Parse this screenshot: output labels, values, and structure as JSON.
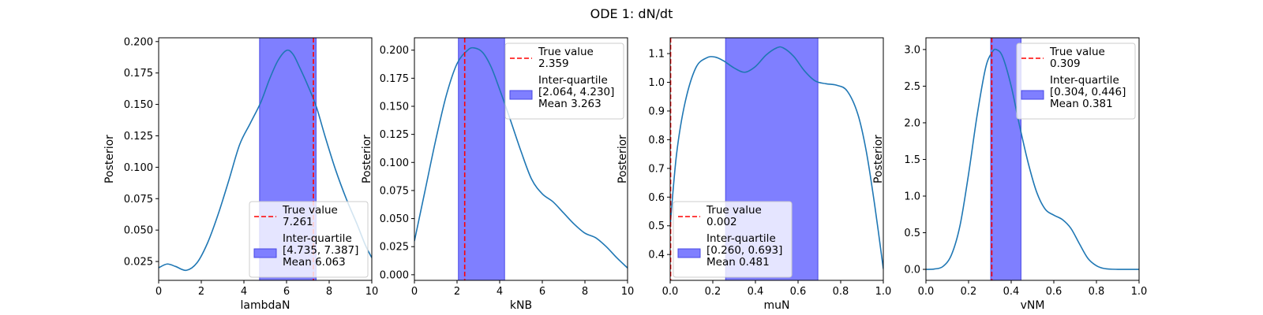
{
  "figure": {
    "title": "ODE 1: dN/dt"
  },
  "chart_data": [
    {
      "type": "line",
      "title": "",
      "xlabel": "lambdaN",
      "ylabel": "Posterior",
      "xlim": [
        0,
        10
      ],
      "ylim": [
        0.01,
        0.203
      ],
      "xticks": [
        0,
        2,
        4,
        6,
        8,
        10
      ],
      "yticks": [
        0.025,
        0.05,
        0.075,
        0.1,
        0.125,
        0.15,
        0.175,
        0.2
      ],
      "tick_decimals": 3,
      "grid": false,
      "legend_position": "lower-right",
      "curve": {
        "x": [
          0,
          0.4,
          0.8,
          1.3,
          1.8,
          2.3,
          2.8,
          3.3,
          3.8,
          4.3,
          4.8,
          5.2,
          5.6,
          6.0,
          6.3,
          6.6,
          7.0,
          7.4,
          7.8,
          8.3,
          8.8,
          9.3,
          9.7,
          10
        ],
        "y": [
          0.02,
          0.023,
          0.021,
          0.018,
          0.024,
          0.04,
          0.063,
          0.09,
          0.118,
          0.135,
          0.152,
          0.17,
          0.185,
          0.193,
          0.19,
          0.18,
          0.165,
          0.148,
          0.125,
          0.098,
          0.075,
          0.055,
          0.038,
          0.028
        ]
      },
      "true_value": 7.261,
      "interquartile": [
        4.735,
        7.387
      ],
      "mean": 6.063,
      "legend": {
        "true_label": "True value",
        "true_value_text": "7.261",
        "iq_label": "Inter-quartile",
        "iq_range_text": "[4.735, 7.387]",
        "mean_text": "Mean 6.063"
      }
    },
    {
      "type": "line",
      "title": "",
      "xlabel": "kNB",
      "ylabel": "Posterior",
      "xlim": [
        0,
        10
      ],
      "ylim": [
        -0.005,
        0.211
      ],
      "xticks": [
        0,
        2,
        4,
        6,
        8,
        10
      ],
      "yticks": [
        0.0,
        0.025,
        0.05,
        0.075,
        0.1,
        0.125,
        0.15,
        0.175,
        0.2
      ],
      "tick_decimals": 3,
      "grid": false,
      "legend_position": "top-right",
      "curve": {
        "x": [
          0,
          0.5,
          1.0,
          1.5,
          2.0,
          2.5,
          2.8,
          3.2,
          3.6,
          4.0,
          4.5,
          5.0,
          5.5,
          6.0,
          6.5,
          7.0,
          7.5,
          8.0,
          8.5,
          9.0,
          9.5,
          10
        ],
        "y": [
          0.03,
          0.075,
          0.12,
          0.16,
          0.188,
          0.2,
          0.202,
          0.198,
          0.185,
          0.165,
          0.138,
          0.11,
          0.085,
          0.072,
          0.065,
          0.055,
          0.045,
          0.037,
          0.033,
          0.025,
          0.015,
          0.006
        ]
      },
      "true_value": 2.359,
      "interquartile": [
        2.064,
        4.23
      ],
      "mean": 3.263,
      "legend": {
        "true_label": "True value",
        "true_value_text": "2.359",
        "iq_label": "Inter-quartile",
        "iq_range_text": "[2.064, 4.230]",
        "mean_text": "Mean 3.263"
      }
    },
    {
      "type": "line",
      "title": "",
      "xlabel": "muN",
      "ylabel": "Posterior",
      "xlim": [
        0,
        1
      ],
      "ylim": [
        0.31,
        1.155
      ],
      "xticks": [
        0.0,
        0.2,
        0.4,
        0.6,
        0.8,
        1.0
      ],
      "yticks": [
        0.4,
        0.5,
        0.6,
        0.7,
        0.8,
        0.9,
        1.0,
        1.1
      ],
      "tick_decimals": 1,
      "grid": false,
      "legend_position": "lower-left",
      "curve": {
        "x": [
          0,
          0.03,
          0.07,
          0.12,
          0.17,
          0.21,
          0.25,
          0.3,
          0.35,
          0.4,
          0.45,
          0.5,
          0.53,
          0.58,
          0.63,
          0.68,
          0.73,
          0.78,
          0.83,
          0.88,
          0.92,
          0.96,
          1.0
        ],
        "y": [
          0.5,
          0.75,
          0.93,
          1.05,
          1.085,
          1.088,
          1.075,
          1.05,
          1.035,
          1.055,
          1.095,
          1.12,
          1.12,
          1.09,
          1.04,
          1.005,
          0.995,
          0.99,
          0.97,
          0.89,
          0.76,
          0.57,
          0.35
        ]
      },
      "true_value": 0.002,
      "interquartile": [
        0.26,
        0.693
      ],
      "mean": 0.481,
      "legend": {
        "true_label": "True value",
        "true_value_text": "0.002",
        "iq_label": "Inter-quartile",
        "iq_range_text": "[0.260, 0.693]",
        "mean_text": "Mean 0.481"
      }
    },
    {
      "type": "line",
      "title": "",
      "xlabel": "vNM",
      "ylabel": "Posterior",
      "xlim": [
        0,
        1
      ],
      "ylim": [
        -0.15,
        3.16
      ],
      "xticks": [
        0.0,
        0.2,
        0.4,
        0.6,
        0.8,
        1.0
      ],
      "yticks": [
        0.0,
        0.5,
        1.0,
        1.5,
        2.0,
        2.5,
        3.0
      ],
      "tick_decimals": 1,
      "grid": false,
      "legend_position": "top-right",
      "curve": {
        "x": [
          0,
          0.04,
          0.08,
          0.12,
          0.16,
          0.2,
          0.24,
          0.28,
          0.31,
          0.33,
          0.36,
          0.4,
          0.44,
          0.48,
          0.52,
          0.56,
          0.6,
          0.64,
          0.68,
          0.72,
          0.76,
          0.8,
          0.84,
          0.9,
          1.0
        ],
        "y": [
          0.0,
          0.005,
          0.04,
          0.2,
          0.6,
          1.3,
          2.1,
          2.75,
          2.96,
          3.0,
          2.9,
          2.5,
          1.95,
          1.45,
          1.05,
          0.82,
          0.74,
          0.68,
          0.56,
          0.35,
          0.15,
          0.05,
          0.01,
          0.0,
          0.0
        ]
      },
      "true_value": 0.309,
      "interquartile": [
        0.304,
        0.446
      ],
      "mean": 0.381,
      "legend": {
        "true_label": "True value",
        "true_value_text": "0.309",
        "iq_label": "Inter-quartile",
        "iq_range_text": "[0.304, 0.446]",
        "mean_text": "Mean 0.381"
      }
    }
  ],
  "colors": {
    "curve": "#1f77b4",
    "true_line": "#ff0000",
    "band_fill": "#7f7fff",
    "band_edge": "#4a4ae6",
    "legend_edge": "#cccccc"
  }
}
